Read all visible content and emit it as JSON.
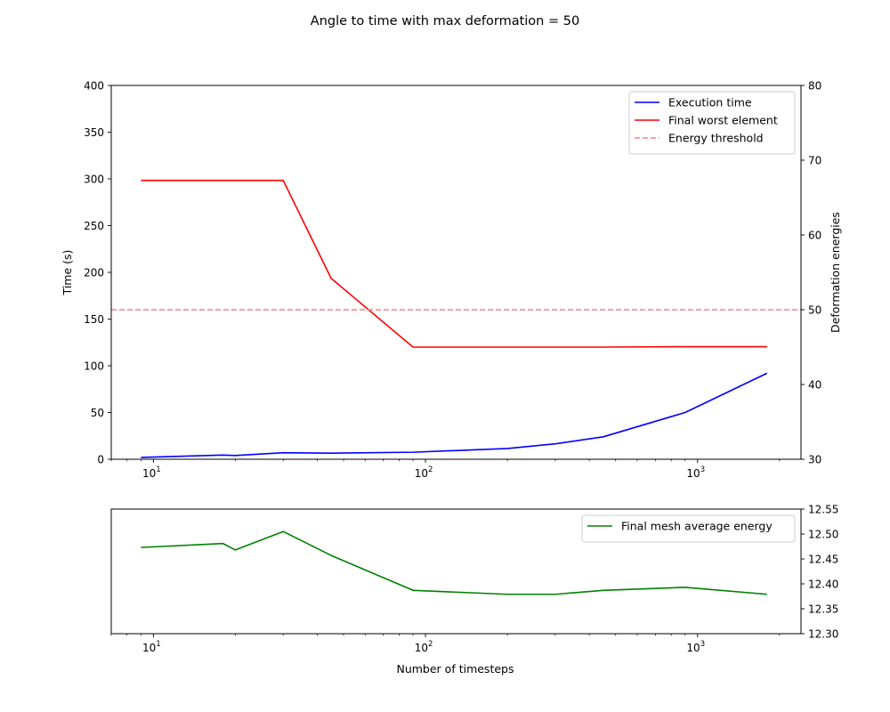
{
  "figure": {
    "title": "Angle to time with max deformation = 50",
    "colors": {
      "time": "#0000ff",
      "worst": "#ff0000",
      "threshold": "#ff8080",
      "average": "#008000",
      "axis": "#000000"
    }
  },
  "chart_data": [
    {
      "type": "line",
      "panel": "top",
      "xscale": "log",
      "xlim": [
        7,
        2400
      ],
      "x_tick_labels": [
        {
          "base": "10",
          "exp": "1"
        },
        {
          "base": "10",
          "exp": "2"
        },
        {
          "base": "10",
          "exp": "3"
        }
      ],
      "left_axis": {
        "label": "Time (s)",
        "ylim": [
          0,
          400
        ],
        "ticks": [
          0,
          50,
          100,
          150,
          200,
          250,
          300,
          350,
          400
        ],
        "tick_labels": [
          "0",
          "50",
          "100",
          "150",
          "200",
          "250",
          "300",
          "350",
          "400"
        ]
      },
      "right_axis": {
        "label": "Deformation energies",
        "ylim": [
          30,
          80
        ],
        "ticks": [
          30,
          40,
          50,
          60,
          70,
          80
        ],
        "tick_labels": [
          "30",
          "40",
          "50",
          "60",
          "70",
          "80"
        ]
      },
      "series": [
        {
          "name": "Execution time",
          "axis": "left",
          "style": "solid",
          "color_key": "time",
          "x": [
            9,
            18,
            20,
            30,
            45,
            90,
            200,
            300,
            450,
            900,
            1800
          ],
          "y": [
            2,
            4.5,
            4,
            7,
            6.5,
            7.5,
            11.5,
            16.5,
            24,
            50,
            92
          ]
        },
        {
          "name": "Final worst element",
          "axis": "right",
          "style": "solid",
          "color_key": "worst",
          "x": [
            9,
            18,
            20,
            30,
            45,
            90,
            200,
            300,
            450,
            900,
            1800
          ],
          "y": [
            67.3,
            67.3,
            67.3,
            67.3,
            54.2,
            45.0,
            45.0,
            45.0,
            45.0,
            45.05,
            45.05
          ]
        },
        {
          "name": "Energy threshold",
          "axis": "right",
          "style": "dashed",
          "color_key": "threshold",
          "x": [
            7,
            2400
          ],
          "y": [
            50,
            50
          ]
        }
      ],
      "legend": {
        "position": "upper right",
        "entries": [
          "Execution time",
          "Final worst element",
          "Energy threshold"
        ]
      }
    },
    {
      "type": "line",
      "panel": "bottom",
      "xscale": "log",
      "xlim": [
        7,
        2400
      ],
      "xlabel": "Number of timesteps",
      "x_tick_labels": [
        {
          "base": "10",
          "exp": "1"
        },
        {
          "base": "10",
          "exp": "2"
        },
        {
          "base": "10",
          "exp": "3"
        }
      ],
      "right_axis": {
        "ylim": [
          12.3,
          12.55
        ],
        "ticks": [
          12.3,
          12.35,
          12.4,
          12.45,
          12.5,
          12.55
        ],
        "tick_labels": [
          "12.30",
          "12.35",
          "12.40",
          "12.45",
          "12.50",
          "12.55"
        ]
      },
      "series": [
        {
          "name": "Final mesh average energy",
          "axis": "right",
          "style": "solid",
          "color_key": "average",
          "x": [
            9,
            18,
            20,
            30,
            45,
            90,
            200,
            300,
            450,
            900,
            1800
          ],
          "y": [
            12.473,
            12.481,
            12.468,
            12.505,
            12.457,
            12.387,
            12.379,
            12.379,
            12.387,
            12.393,
            12.379
          ]
        }
      ],
      "legend": {
        "position": "upper right",
        "entries": [
          "Final mesh average energy"
        ]
      }
    }
  ]
}
